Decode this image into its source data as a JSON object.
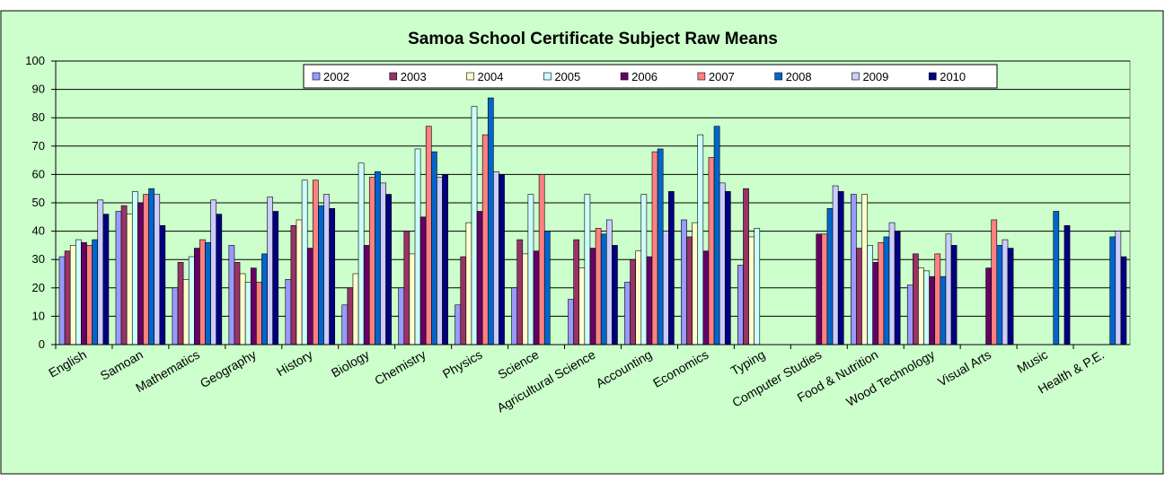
{
  "chart_data": {
    "type": "bar",
    "title": "Samoa School Certificate Subject Raw Means",
    "categories": [
      "English",
      "Samoan",
      "Mathematics",
      "Geography",
      "History",
      "Biology",
      "Chemistry",
      "Physics",
      "Science",
      "Agricultural Science",
      "Accounting",
      "Economics",
      "Typing",
      "Computer Studies",
      "Food & Nutrition",
      "Wood Technology",
      "Visual Arts",
      "Music",
      "Health & P.E."
    ],
    "series": [
      {
        "name": "2002",
        "color": "#9999ff",
        "values": [
          31,
          47,
          20,
          35,
          23,
          14,
          20,
          14,
          20,
          16,
          22,
          44,
          28,
          null,
          53,
          21,
          null,
          null,
          null
        ]
      },
      {
        "name": "2003",
        "color": "#993366",
        "values": [
          33,
          49,
          29,
          29,
          42,
          20,
          40,
          31,
          37,
          37,
          30,
          38,
          55,
          null,
          34,
          32,
          null,
          null,
          null
        ]
      },
      {
        "name": "2004",
        "color": "#ffffcc",
        "values": [
          35,
          46,
          23,
          25,
          44,
          25,
          32,
          43,
          32,
          27,
          33,
          43,
          38,
          null,
          53,
          27,
          null,
          null,
          null
        ]
      },
      {
        "name": "2005",
        "color": "#ccffff",
        "values": [
          37,
          54,
          31,
          22,
          58,
          64,
          69,
          84,
          53,
          53,
          53,
          74,
          41,
          null,
          35,
          26,
          null,
          null,
          null
        ]
      },
      {
        "name": "2006",
        "color": "#660066",
        "values": [
          36,
          50,
          34,
          27,
          34,
          35,
          45,
          47,
          33,
          34,
          31,
          33,
          null,
          39,
          29,
          24,
          27,
          null,
          null
        ]
      },
      {
        "name": "2007",
        "color": "#ff8080",
        "values": [
          35,
          53,
          37,
          22,
          58,
          59,
          77,
          74,
          60,
          41,
          68,
          66,
          null,
          39,
          36,
          32,
          44,
          null,
          null
        ]
      },
      {
        "name": "2008",
        "color": "#0066cc",
        "values": [
          37,
          55,
          36,
          32,
          49,
          61,
          68,
          87,
          40,
          39,
          69,
          77,
          null,
          48,
          38,
          24,
          35,
          47,
          38
        ]
      },
      {
        "name": "2009",
        "color": "#ccccff",
        "values": [
          51,
          53,
          51,
          52,
          53,
          57,
          59,
          61,
          null,
          44,
          40,
          57,
          null,
          56,
          43,
          39,
          37,
          null,
          40
        ]
      },
      {
        "name": "2010",
        "color": "#000080",
        "values": [
          46,
          42,
          46,
          47,
          48,
          53,
          60,
          60,
          null,
          35,
          54,
          54,
          null,
          54,
          40,
          35,
          34,
          42,
          31
        ]
      }
    ],
    "ylim": [
      0,
      100
    ],
    "yticks": [
      0,
      10,
      20,
      30,
      40,
      50,
      60,
      70,
      80,
      90,
      100
    ],
    "grid": true
  }
}
